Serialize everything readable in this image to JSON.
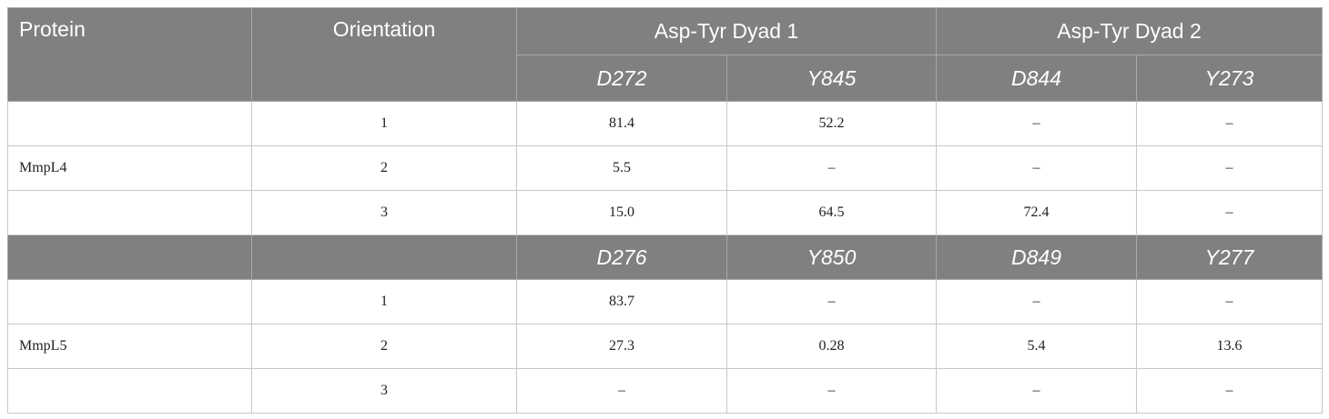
{
  "header": {
    "protein": "Protein",
    "orientation": "Orientation",
    "dyad1": "Asp-Tyr Dyad 1",
    "dyad2": "Asp-Tyr Dyad 2"
  },
  "groups": [
    {
      "protein": "MmpL4",
      "subheaders": [
        "D272",
        "Y845",
        "D844",
        "Y273"
      ],
      "rows": [
        [
          "1",
          "81.4",
          "52.2",
          "–",
          "–"
        ],
        [
          "2",
          "5.5",
          "–",
          "–",
          "–"
        ],
        [
          "3",
          "15.0",
          "64.5",
          "72.4",
          "–"
        ]
      ]
    },
    {
      "protein": "MmpL5",
      "subheaders": [
        "D276",
        "Y850",
        "D849",
        "Y277"
      ],
      "rows": [
        [
          "1",
          "83.7",
          "–",
          "–",
          "–"
        ],
        [
          "2",
          "27.3",
          "0.28",
          "5.4",
          "13.6"
        ],
        [
          "3",
          "–",
          "–",
          "–",
          "–"
        ]
      ]
    }
  ]
}
